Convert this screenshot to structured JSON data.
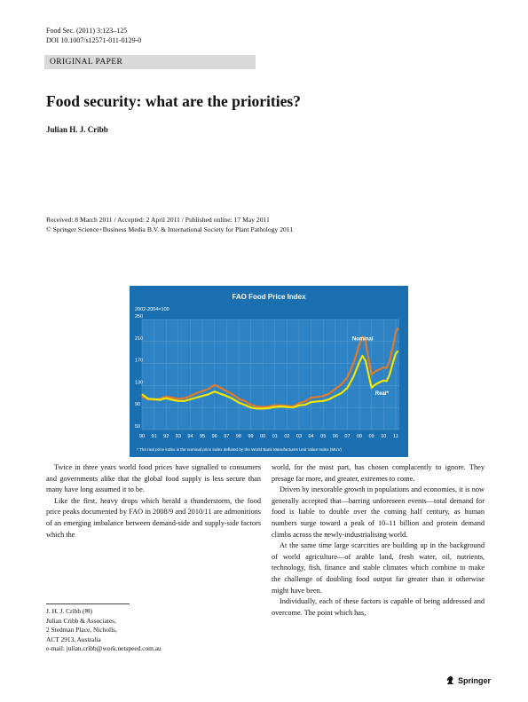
{
  "header": {
    "journal": "Food Sec. (2011) 3:123–125",
    "doi": "DOI 10.1007/s12571-011-0129-0"
  },
  "article_type": "ORIGINAL PAPER",
  "title": "Food security: what are the priorities?",
  "author": "Julian H. J. Cribb",
  "dates": "Received: 8 March 2011 / Accepted: 2 April 2011 / Published online: 17 May 2011",
  "copyright": "© Springer Science+Business Media B.V. & International Society for Plant Pathology 2011",
  "chart_data": {
    "type": "line",
    "title": "FAO Food Price Index",
    "ylabel": "2002-2004=100",
    "ylim": [
      50,
      250
    ],
    "yticks": [
      50,
      90,
      130,
      170,
      210,
      250
    ],
    "xlim": [
      1990,
      2011.3
    ],
    "xticks": [
      1990,
      1991,
      1992,
      1993,
      1994,
      1995,
      1996,
      1997,
      1998,
      1999,
      2000,
      2001,
      2002,
      2003,
      2004,
      2005,
      2006,
      2007,
      2008,
      2009,
      2010,
      2011
    ],
    "xticklabels": [
      "90",
      "91",
      "92",
      "93",
      "94",
      "95",
      "96",
      "97",
      "98",
      "99",
      "00",
      "01",
      "02",
      "03",
      "04",
      "05",
      "06",
      "07",
      "08",
      "09",
      "10",
      "11"
    ],
    "grid": true,
    "footnote": "* The real price index is the nominal price index deflated by the World Bank Manufactures Unit Value Index (MUV)",
    "colors": {
      "background": "#1a6fb0",
      "plot": "#2e83c4",
      "nominal": "#e07a2c",
      "real": "#f2e600",
      "grid": "#5c9fd2"
    },
    "x": [
      1990,
      1990.5,
      1991,
      1991.5,
      1992,
      1992.5,
      1993,
      1993.5,
      1994,
      1994.5,
      1995,
      1995.5,
      1996,
      1996.5,
      1997,
      1997.5,
      1998,
      1998.5,
      1999,
      1999.5,
      2000,
      2000.5,
      2001,
      2001.5,
      2002,
      2002.5,
      2003,
      2003.5,
      2004,
      2004.5,
      2005,
      2005.5,
      2006,
      2006.5,
      2007,
      2007.5,
      2008,
      2008.25,
      2008.5,
      2008.75,
      2009,
      2009.25,
      2009.5,
      2009.75,
      2010,
      2010.25,
      2010.5,
      2010.75,
      2011,
      2011.2
    ],
    "series": [
      {
        "name": "Nominal",
        "values": [
          110,
          105,
          104,
          106,
          110,
          108,
          106,
          107,
          111,
          116,
          120,
          124,
          131,
          126,
          120,
          114,
          106,
          102,
          95,
          92,
          91,
          92,
          94,
          94,
          93,
          92,
          98,
          101,
          108,
          109,
          111,
          115,
          124,
          132,
          145,
          170,
          205,
          219,
          210,
          178,
          150,
          155,
          158,
          160,
          163,
          162,
          175,
          199,
          226,
          235
        ]
      },
      {
        "name": "Real*",
        "values": [
          114,
          106,
          105,
          104,
          107,
          104,
          102,
          102,
          105,
          108,
          111,
          114,
          119,
          115,
          111,
          106,
          99,
          95,
          90,
          88,
          88,
          89,
          91,
          92,
          91,
          90,
          94,
          95,
          100,
          101,
          102,
          105,
          111,
          116,
          126,
          146,
          173,
          184,
          175,
          150,
          126,
          131,
          134,
          137,
          139,
          138,
          150,
          170,
          188,
          193
        ]
      }
    ]
  },
  "col_left": [
    "Twice in three years world food prices have signalled to consumers and governments alike that the global food supply is less secure than many have long assumed it to be.",
    "Like the first, heavy drops which herald a thunderstorm, the food price peaks documented by FAO in 2008/9 and 2010/11 are admonitions of an emerging imbalance between demand-side and supply-side factors which the"
  ],
  "col_right": [
    "world, for the most part, has chosen complacently to ignore. They presage far more, and greater, extremes to come.",
    "Driven by inexorable growth in populations and economies, it is now generally accepted that—barring unforeseen events—total demand for food is liable to double over the coming half century, as human numbers surge toward a peak of 10–11 billion and protein demand climbs across the newly-industrialising world.",
    "At the same time large scarcities are building up in the background of world agriculture—of arable land, fresh water, oil, nutrients, technology, fish, finance and stable climates which combine to make the challenge of doubling food output far greater than it otherwise might have been.",
    "Individually, each of these factors is capable of being addressed and overcome. The point which has,"
  ],
  "contact": {
    "name": "J. H. J. Cribb (✉)",
    "org": "Julian Cribb & Associates,",
    "street": "2 Stedman Place, Nicholls,",
    "city": "ACT 2913, Australia",
    "email": "e-mail: julian.cribb@work.netspeed.com.au"
  },
  "publisher": "Springer"
}
